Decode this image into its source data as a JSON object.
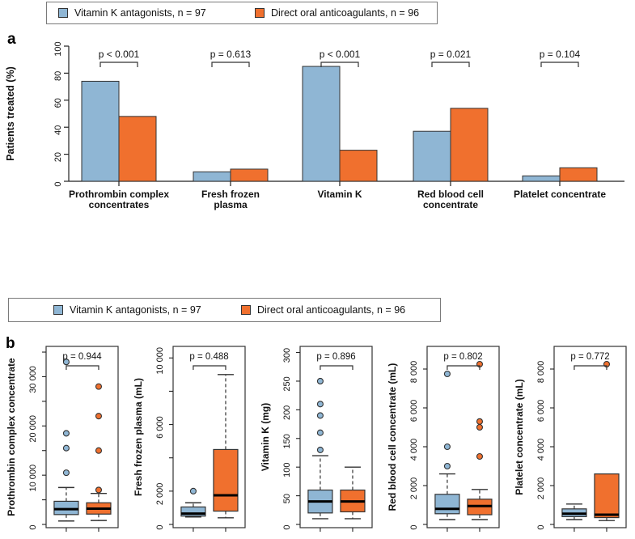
{
  "panel_labels": {
    "a": "a",
    "b": "b"
  },
  "colors": {
    "vka": "#8fb6d4",
    "doac": "#f0702e",
    "stroke": "#333333",
    "median": "#000000",
    "axis": "#222222",
    "legend_border": "#7a7a7a"
  },
  "legend": {
    "items": [
      {
        "key": "vka",
        "label": "Vitamin K antagonists, n = 97"
      },
      {
        "key": "doac",
        "label": "Direct oral anticoagulants, n = 96"
      }
    ]
  },
  "chart_data": [
    {
      "type": "bar",
      "panel": "a",
      "ylabel": "Patients treated (%)",
      "ylim": [
        0,
        100
      ],
      "yticks": [
        0,
        20,
        40,
        60,
        80,
        100
      ],
      "grid": false,
      "legend_position": "top",
      "categories": [
        [
          "Prothrombin complex",
          "concentrates"
        ],
        [
          "Fresh frozen",
          "plasma"
        ],
        [
          "Vitamin K"
        ],
        [
          "Red blood cell",
          "concentrate"
        ],
        [
          "Platelet concentrate"
        ]
      ],
      "series": [
        {
          "name": "Vitamin K antagonists, n = 97",
          "key": "vka",
          "values": [
            74,
            7,
            85,
            37,
            4
          ]
        },
        {
          "name": "Direct oral anticoagulants, n = 96",
          "key": "doac",
          "values": [
            48,
            9,
            23,
            54,
            10
          ]
        }
      ],
      "p_values": [
        "p < 0.001",
        "p = 0.613",
        "p < 0.001",
        "p = 0.021",
        "p = 0.104"
      ]
    },
    {
      "type": "boxplot",
      "panel": "b",
      "legend_position": "top",
      "plots": [
        {
          "ylabel": "Prothrombin complex concentrate",
          "p_value": "p = 0.944",
          "ylim": [
            0,
            35500
          ],
          "yticks": [
            {
              "v": 0,
              "label": "0"
            },
            {
              "v": 5000
            },
            {
              "v": 10000,
              "label": "10 000"
            },
            {
              "v": 15000
            },
            {
              "v": 20000,
              "label": "20 000"
            },
            {
              "v": 25000
            },
            {
              "v": 30000,
              "label": "30 000"
            },
            {
              "v": 35000
            }
          ],
          "series": [
            {
              "key": "vka",
              "stats": {
                "lo": 700,
                "q1": 2000,
                "med": 3100,
                "q3": 4700,
                "hi": 7500
              },
              "outliers": [
                10500,
                15500,
                18500,
                33000
              ]
            },
            {
              "key": "doac",
              "stats": {
                "lo": 800,
                "q1": 2100,
                "med": 3200,
                "q3": 4400,
                "hi": 6300
              },
              "outliers": [
                7000,
                15000,
                22000,
                28000
              ]
            }
          ]
        },
        {
          "ylabel": "Fresh frozen plasma (mL)",
          "p_value": "p = 0.488",
          "ylim": [
            0,
            10500
          ],
          "yticks": [
            {
              "v": 0,
              "label": "0"
            },
            {
              "v": 2000,
              "label": "2 000"
            },
            {
              "v": 4000
            },
            {
              "v": 6000,
              "label": "6 000"
            },
            {
              "v": 8000
            },
            {
              "v": 10000,
              "label": "10 000"
            }
          ],
          "series": [
            {
              "key": "vka",
              "stats": {
                "lo": 450,
                "q1": 500,
                "med": 650,
                "q3": 1050,
                "hi": 1300
              },
              "outliers": [
                2000
              ]
            },
            {
              "key": "doac",
              "stats": {
                "lo": 400,
                "q1": 800,
                "med": 1750,
                "q3": 4500,
                "hi": 9000
              },
              "outliers": []
            }
          ]
        },
        {
          "ylabel": "Vitamin K (mg)",
          "p_value": "p = 0.896",
          "ylim": [
            0,
            305
          ],
          "yticks": [
            {
              "v": 0,
              "label": "0"
            },
            {
              "v": 50,
              "label": "50"
            },
            {
              "v": 100,
              "label": "100"
            },
            {
              "v": 150,
              "label": "150"
            },
            {
              "v": 200,
              "label": "200"
            },
            {
              "v": 250,
              "label": "250"
            },
            {
              "v": 300,
              "label": "300"
            }
          ],
          "series": [
            {
              "key": "vka",
              "stats": {
                "lo": 10,
                "q1": 20,
                "med": 40,
                "q3": 60,
                "hi": 120
              },
              "outliers": [
                130,
                160,
                190,
                210,
                250
              ]
            },
            {
              "key": "doac",
              "stats": {
                "lo": 10,
                "q1": 22,
                "med": 40,
                "q3": 60,
                "hi": 100
              },
              "outliers": []
            }
          ]
        },
        {
          "ylabel": "Red blood cell concentrate (mL)",
          "p_value": "p = 0.802",
          "ylim": [
            0,
            9000
          ],
          "yticks": [
            {
              "v": 0,
              "label": "0"
            },
            {
              "v": 2000,
              "label": "2 000"
            },
            {
              "v": 4000,
              "label": "4 000"
            },
            {
              "v": 6000,
              "label": "6 000"
            },
            {
              "v": 8000,
              "label": "8 000"
            }
          ],
          "series": [
            {
              "key": "vka",
              "stats": {
                "lo": 250,
                "q1": 550,
                "med": 800,
                "q3": 1550,
                "hi": 2600
              },
              "outliers": [
                3000,
                4000,
                7750
              ]
            },
            {
              "key": "doac",
              "stats": {
                "lo": 250,
                "q1": 500,
                "med": 950,
                "q3": 1300,
                "hi": 1800
              },
              "outliers": [
                3500,
                5000,
                5300,
                8250
              ]
            }
          ]
        },
        {
          "ylabel": "Platelet concentrate (mL)",
          "p_value": "p = 0.772",
          "ylim": [
            0,
            9000
          ],
          "yticks": [
            {
              "v": 0,
              "label": "0"
            },
            {
              "v": 2000,
              "label": "2 000"
            },
            {
              "v": 4000,
              "label": "4 000"
            },
            {
              "v": 6000,
              "label": "6 000"
            },
            {
              "v": 8000,
              "label": "8 000"
            }
          ],
          "series": [
            {
              "key": "vka",
              "stats": {
                "lo": 250,
                "q1": 400,
                "med": 550,
                "q3": 800,
                "hi": 1050
              },
              "outliers": []
            },
            {
              "key": "doac",
              "stats": {
                "lo": 200,
                "q1": 350,
                "med": 500,
                "q3": 2600,
                "hi": 2600
              },
              "outliers": [
                8250
              ]
            }
          ]
        }
      ]
    }
  ]
}
